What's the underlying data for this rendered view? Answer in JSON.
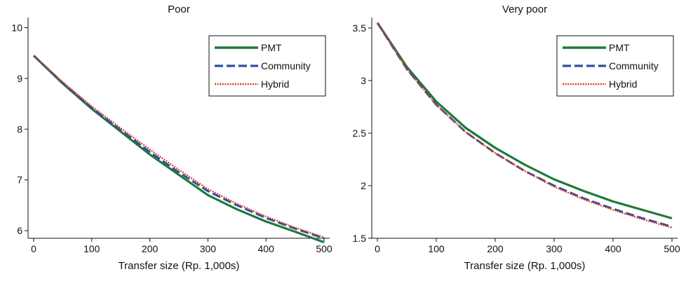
{
  "chart_data": [
    {
      "type": "line",
      "title": "Poor",
      "xlabel": "Transfer size (Rp. 1,000s)",
      "ylabel": "",
      "xlim": [
        0,
        500
      ],
      "ylim": [
        5.85,
        10.2
      ],
      "xticks": [
        "0",
        "100",
        "200",
        "300",
        "400",
        "500"
      ],
      "yticks": [
        "6",
        "7",
        "8",
        "9",
        "10"
      ],
      "grid": false,
      "legend_position": "top-right",
      "x": [
        0,
        50,
        100,
        150,
        200,
        250,
        300,
        350,
        400,
        450,
        500
      ],
      "series": [
        {
          "name": "PMT",
          "color": "#1f7a3a",
          "style": "solid",
          "values": [
            9.45,
            8.9,
            8.4,
            7.95,
            7.5,
            7.1,
            6.7,
            6.42,
            6.18,
            5.98,
            5.77
          ]
        },
        {
          "name": "Community",
          "color": "#2d4fa0",
          "style": "dashed",
          "values": [
            9.45,
            8.91,
            8.42,
            7.98,
            7.55,
            7.15,
            6.78,
            6.5,
            6.25,
            6.04,
            5.85
          ]
        },
        {
          "name": "Hybrid",
          "color": "#e03a24",
          "style": "dotted",
          "values": [
            9.45,
            8.93,
            8.45,
            8.02,
            7.6,
            7.2,
            6.82,
            6.53,
            6.28,
            6.06,
            5.87
          ]
        }
      ]
    },
    {
      "type": "line",
      "title": "Very poor",
      "xlabel": "Transfer size (Rp. 1,000s)",
      "ylabel": "",
      "xlim": [
        0,
        500
      ],
      "ylim": [
        1.5,
        3.6
      ],
      "xticks": [
        "0",
        "100",
        "200",
        "300",
        "400",
        "500"
      ],
      "yticks": [
        "1.5",
        "2",
        "2.5",
        "3",
        "3.5"
      ],
      "grid": false,
      "legend_position": "top-right",
      "x": [
        0,
        50,
        100,
        150,
        200,
        250,
        300,
        350,
        400,
        450,
        500
      ],
      "series": [
        {
          "name": "PMT",
          "color": "#1f7a3a",
          "style": "solid",
          "values": [
            3.55,
            3.13,
            2.8,
            2.55,
            2.36,
            2.2,
            2.06,
            1.95,
            1.85,
            1.77,
            1.69
          ]
        },
        {
          "name": "Community",
          "color": "#2d4fa0",
          "style": "dashed",
          "values": [
            3.55,
            3.11,
            2.77,
            2.51,
            2.31,
            2.14,
            2.0,
            1.88,
            1.78,
            1.69,
            1.61
          ]
        },
        {
          "name": "Hybrid",
          "color": "#e03a24",
          "style": "dotted",
          "values": [
            3.55,
            3.11,
            2.77,
            2.51,
            2.31,
            2.14,
            1.99,
            1.87,
            1.77,
            1.68,
            1.6
          ]
        }
      ]
    }
  ]
}
